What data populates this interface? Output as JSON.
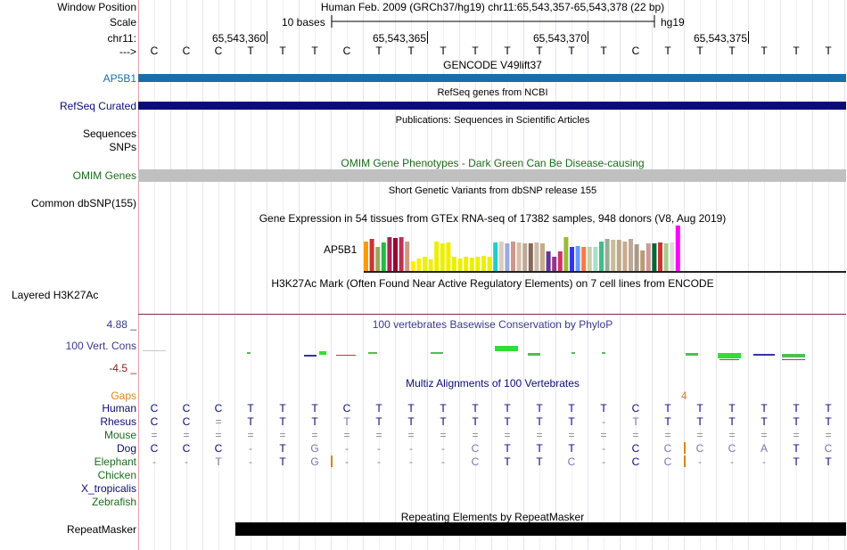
{
  "colors": {
    "ap5b1": "#1a6fa8",
    "refseq": "#0c0c78",
    "omim": "#c0c0c0",
    "omim_text": "#1b6b1b",
    "cons_text": "#3a3a8c",
    "gaps": "#d4871a",
    "repeat": "#000000"
  },
  "labels": {
    "window_position": "Window Position",
    "scale": "Scale",
    "chr": "chr11:",
    "arrow": "--->",
    "ap5b1": "AP5B1",
    "refseq": "RefSeq Curated",
    "sequences": "Sequences",
    "snps": "SNPs",
    "omim": "OMIM Genes",
    "common_dbsnp": "Common dbSNP(155)",
    "h3k27ac": "Layered H3K27Ac",
    "cons_max": "4.88 _",
    "cons_name": "100 Vert. Cons",
    "cons_min": "-4.5 _",
    "gaps": "Gaps",
    "repeatmasker": "RepeatMasker"
  },
  "header": {
    "position": "Human Feb. 2009 (GRCh37/hg19)   chr11:65,543,357-65,543,378 (22 bp)",
    "scale_text": "10 bases",
    "assembly": "hg19",
    "ticks": [
      "65,543,360",
      "65,543,365",
      "65,543,370",
      "65,543,375"
    ]
  },
  "bases": [
    "C",
    "C",
    "C",
    "T",
    "T",
    "T",
    "C",
    "T",
    "T",
    "T",
    "T",
    "T",
    "T",
    "T",
    "T",
    "C",
    "T",
    "T",
    "T",
    "T",
    "T",
    "T"
  ],
  "titles": {
    "gencode": "GENCODE V49lift37",
    "refseq": "RefSeq genes from NCBI",
    "publications": "Publications: Sequences in Scientific Articles",
    "omim": "OMIM Gene Phenotypes - Dark Green Can Be Disease-causing",
    "dbsnp": "Short Genetic Variants from dbSNP release 155",
    "gtex": "Gene Expression in 54 tissues from GTEx RNA-seq of 17382 samples, 948 donors (V8, Aug 2019)",
    "h3k27ac": "H3K27Ac Mark (Often Found Near Active Regulatory Elements) on 7 cell lines from ENCODE",
    "phylop": "100 vertebrates Basewise Conservation by PhyloP",
    "multiz": "Multiz Alignments of 100 Vertebrates",
    "repeat": "Repeating Elements by RepeatMasker"
  },
  "gtex": {
    "gene": "AP5B1",
    "values": [
      0.62,
      0.66,
      0.5,
      0.6,
      0.7,
      0.68,
      0.7,
      0.62,
      0.2,
      0.26,
      0.3,
      0.24,
      0.62,
      0.58,
      0.6,
      0.3,
      0.26,
      0.3,
      0.28,
      0.3,
      0.32,
      0.3,
      0.6,
      0.62,
      0.58,
      0.62,
      0.6,
      0.58,
      0.58,
      0.6,
      0.58,
      0.4,
      0.3,
      0.4,
      0.7,
      0.5,
      0.52,
      0.5,
      0.5,
      0.5,
      0.62,
      0.66,
      0.64,
      0.64,
      0.62,
      0.66,
      0.56,
      0.42,
      0.58,
      0.58,
      0.6,
      0.58,
      0.6,
      0.95
    ],
    "colors": [
      "#ff9900",
      "#cc3333",
      "#99aa55",
      "#22bb44",
      "#aa2255",
      "#990033",
      "#bb3355",
      "#cc9988",
      "#ffee00",
      "#ffee00",
      "#eeee11",
      "#eeee11",
      "#eeee00",
      "#eeee00",
      "#eeee00",
      "#eeee00",
      "#eeee00",
      "#eeee00",
      "#eeee00",
      "#eeee00",
      "#eeee00",
      "#eeee00",
      "#22cccc",
      "#ddccbb",
      "#99aadd",
      "#cc9988",
      "#ddbbaa",
      "#bbaa99",
      "#886655",
      "#ccbbaa",
      "#ccaa88",
      "#663399",
      "#993388",
      "#cc3366",
      "#99bb33",
      "#3333ff",
      "#6699ff",
      "#ff7744",
      "#ccccaa",
      "#aaddcc",
      "#44bb88",
      "#99aa99",
      "#ccbb99",
      "#bbaa88",
      "#ccaa88",
      "#bbaa99",
      "#aa9988",
      "#bb9977",
      "#cc9999",
      "#006633",
      "#cc3333",
      "#aacc88",
      "#dddddd",
      "#ff00ff"
    ]
  },
  "multiz": {
    "gap_count": "4",
    "species": [
      {
        "name": "Human",
        "color": "#0c0c78",
        "bases": [
          "C",
          "C",
          "C",
          "T",
          "T",
          "T",
          "C",
          "T",
          "T",
          "T",
          "T",
          "T",
          "T",
          "T",
          "T",
          "C",
          "T",
          "T",
          "T",
          "T",
          "T",
          "T"
        ]
      },
      {
        "name": "Rhesus",
        "color": "#0c0c78",
        "bases": [
          "C",
          "C",
          "=",
          "T",
          "T",
          "T",
          "T",
          "T",
          "T",
          "T",
          "T",
          "T",
          "T",
          "T",
          "-",
          "T",
          "T",
          "T",
          "T",
          "T",
          "T",
          "T"
        ]
      },
      {
        "name": "Mouse",
        "color": "#1b6b1b",
        "bases": [
          "=",
          "=",
          "=",
          "=",
          "=",
          "=",
          "=",
          "=",
          "=",
          "=",
          "=",
          "=",
          "=",
          "=",
          "=",
          "=",
          "=",
          "=",
          "=",
          "=",
          "=",
          "="
        ]
      },
      {
        "name": "Dog",
        "color": "#0c0c78",
        "bases": [
          "C",
          "C",
          "C",
          "-",
          "T",
          "G",
          "-",
          "-",
          "-",
          "-",
          "C",
          "T",
          "T",
          "T",
          "-",
          "C",
          "C",
          "C",
          "C",
          "A",
          "T",
          "C"
        ]
      },
      {
        "name": "Elephant",
        "color": "#1b6b1b",
        "bases": [
          "-",
          "-",
          "T",
          "-",
          "T",
          "G",
          "-",
          "-",
          "-",
          "-",
          "C",
          "T",
          "T",
          "C",
          "-",
          "C",
          "C",
          "-",
          "-",
          "-",
          "T",
          "T"
        ]
      },
      {
        "name": "Chicken",
        "color": "#1b6b1b",
        "bases": []
      },
      {
        "name": "X_tropicalis",
        "color": "#0c0c78",
        "bases": []
      },
      {
        "name": "Zebrafish",
        "color": "#1b6b1b",
        "bases": []
      }
    ]
  }
}
